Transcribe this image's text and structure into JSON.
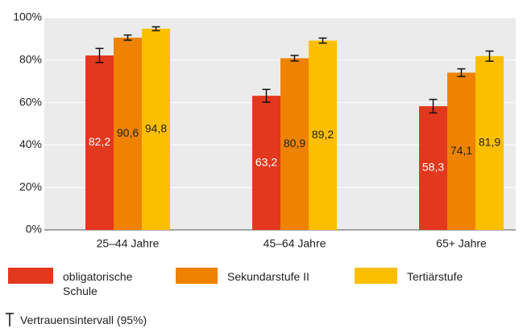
{
  "chart_data": {
    "type": "bar",
    "categories": [
      "25–44 Jahre",
      "45–64 Jahre",
      "65+ Jahre"
    ],
    "series": [
      {
        "name": "obligatorische Schule",
        "color": "#e2381d",
        "values": [
          82.2,
          63.2,
          58.3
        ],
        "value_labels": [
          "82,2",
          "63,2",
          "58,3"
        ],
        "errors": [
          3.3,
          3.0,
          3.2
        ]
      },
      {
        "name": "Sekundarstufe II",
        "color": "#ef8200",
        "values": [
          90.6,
          80.9,
          74.1
        ],
        "value_labels": [
          "90,6",
          "80,9",
          "74,1"
        ],
        "errors": [
          1.2,
          1.3,
          1.8
        ]
      },
      {
        "name": "Tertiärstufe",
        "color": "#fcbf00",
        "values": [
          94.8,
          89.2,
          81.9
        ],
        "value_labels": [
          "94,8",
          "89,2",
          "81,9"
        ],
        "errors": [
          0.9,
          1.2,
          2.4
        ]
      }
    ],
    "error_bar_label": "Vertrauensintervall (95%)",
    "ylim": [
      0,
      100
    ],
    "yticks": [
      {
        "value": 0,
        "label": "0%"
      },
      {
        "value": 20,
        "label": "20%"
      },
      {
        "value": 40,
        "label": "40%"
      },
      {
        "value": 60,
        "label": "60%"
      },
      {
        "value": 80,
        "label": "80%"
      },
      {
        "value": 100,
        "label": "100%"
      }
    ],
    "grid": true
  }
}
